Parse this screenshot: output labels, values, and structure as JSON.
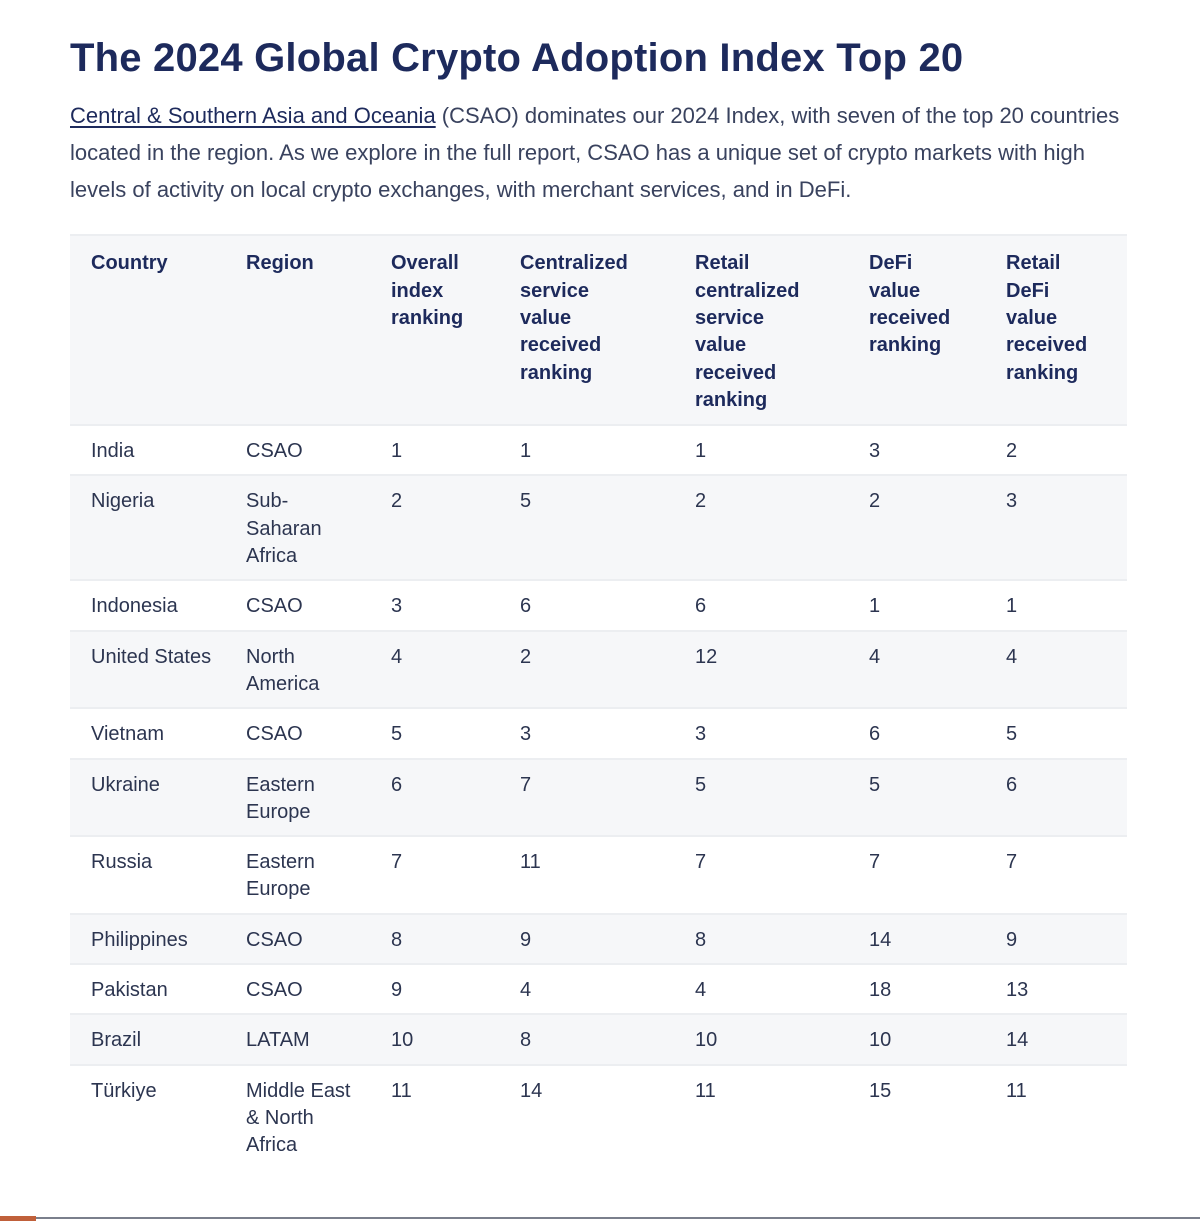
{
  "title": "The 2024 Global Crypto Adoption Index Top 20",
  "intro": {
    "link_text": "Central & Southern Asia and Oceania",
    "text": " (CSAO) dominates our 2024 Index, with seven of the top 20 countries located in the region. As we explore in the full report, CSAO has a unique set of crypto markets with high levels of activity on local crypto exchanges, with merchant services, and in DeFi."
  },
  "table": {
    "headers": [
      "Country",
      "Region",
      "Overall index ranking",
      "Centralized service value received ranking",
      "Retail centralized service value received ranking",
      "DeFi value received ranking",
      "Retail DeFi value received ranking"
    ],
    "rows": [
      [
        "India",
        "CSAO",
        "1",
        "1",
        "1",
        "3",
        "2"
      ],
      [
        "Nigeria",
        "Sub-Saharan Africa",
        "2",
        "5",
        "2",
        "2",
        "3"
      ],
      [
        "Indonesia",
        "CSAO",
        "3",
        "6",
        "6",
        "1",
        "1"
      ],
      [
        "United States",
        "North America",
        "4",
        "2",
        "12",
        "4",
        "4"
      ],
      [
        "Vietnam",
        "CSAO",
        "5",
        "3",
        "3",
        "6",
        "5"
      ],
      [
        "Ukraine",
        "Eastern Europe",
        "6",
        "7",
        "5",
        "5",
        "6"
      ],
      [
        "Russia",
        "Eastern Europe",
        "7",
        "11",
        "7",
        "7",
        "7"
      ],
      [
        "Philippines",
        "CSAO",
        "8",
        "9",
        "8",
        "14",
        "9"
      ],
      [
        "Pakistan",
        "CSAO",
        "9",
        "4",
        "4",
        "18",
        "13"
      ],
      [
        "Brazil",
        "LATAM",
        "10",
        "8",
        "10",
        "10",
        "14"
      ],
      [
        "Türkiye",
        "Middle East & North Africa",
        "11",
        "14",
        "11",
        "15",
        "11"
      ]
    ]
  }
}
